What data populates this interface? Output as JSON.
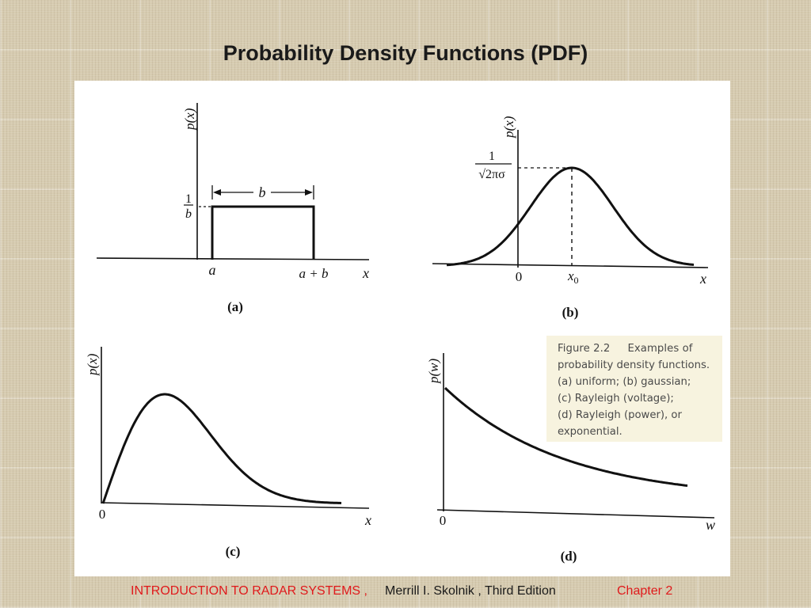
{
  "slide": {
    "title": "Probability Density Functions (PDF)"
  },
  "figure": {
    "panel_a": {
      "ylabel": "p(x)",
      "height_label_num": "1",
      "height_label_den": "b",
      "width_label": "b",
      "x_tick_a": "a",
      "x_tick_ab": "a + b",
      "xlabel": "x",
      "panel_label": "(a)"
    },
    "panel_b": {
      "ylabel": "p(x)",
      "peak_label_num": "1",
      "peak_label_den": "√2πσ",
      "x_tick_0": "0",
      "x_tick_x0": "x",
      "x_tick_x0_sub": "0",
      "xlabel": "x",
      "panel_label": "(b)"
    },
    "panel_c": {
      "ylabel": "p(x)",
      "x_tick_0": "0",
      "xlabel": "x",
      "panel_label": "(c)"
    },
    "panel_d": {
      "ylabel": "p(w)",
      "x_tick_0": "0",
      "xlabel": "w",
      "panel_label": "(d)"
    },
    "caption": {
      "figure_number": "Figure 2.2",
      "line1_rest": "Examples of",
      "line2": "probability density functions.",
      "line3": "(a) uniform; (b) gaussian;",
      "line4": "(c) Rayleigh (voltage);",
      "line5": "(d) Rayleigh (power), or",
      "line6": "exponential."
    }
  },
  "footer": {
    "book_title": "INTRODUCTION  TO  RADAR  SYSTEMS ,",
    "author_edition": "Merrill I. Skolnik , Third Edition",
    "chapter": "Chapter 2"
  },
  "colors": {
    "footer_accent": "#e0191b",
    "background": "#d6cbb0",
    "panel": "#ffffff"
  }
}
